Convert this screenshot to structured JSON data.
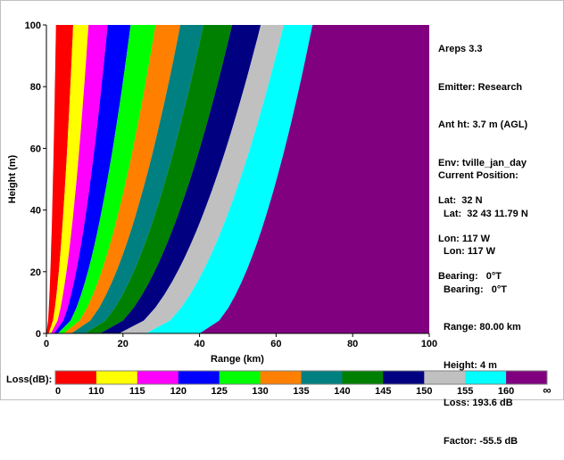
{
  "chart_data": {
    "type": "heatmap",
    "title": "",
    "xlabel": "Range (km)",
    "ylabel": "Height (m)",
    "xlim": [
      0,
      100
    ],
    "ylim": [
      0,
      100
    ],
    "x_ticks": [
      "0",
      "20",
      "40",
      "60",
      "80",
      "100"
    ],
    "y_ticks": [
      "0",
      "20",
      "40",
      "60",
      "80",
      "100"
    ],
    "legend_title": "Loss(dB):",
    "legend_labels": [
      "0",
      "110",
      "115",
      "120",
      "125",
      "130",
      "135",
      "140",
      "145",
      "150",
      "155",
      "160",
      "∞"
    ],
    "legend_colors": [
      "#ff0000",
      "#ffff00",
      "#ff00ff",
      "#0000ff",
      "#00ff00",
      "#ff8000",
      "#008080",
      "#008000",
      "#000080",
      "#c0c0c0",
      "#00ffff",
      "#800080"
    ],
    "band_boundaries_range_km_at_top": [
      2.5,
      7,
      11,
      16,
      22,
      28.5,
      35,
      41,
      48.5,
      56,
      62,
      69.5
    ],
    "band_boundaries_range_km_at_bottom": [
      0,
      0.6,
      1.2,
      2,
      3,
      4.5,
      6.5,
      10,
      14,
      19,
      26,
      40
    ]
  },
  "info": {
    "app": "Areps 3.3",
    "emitter": "Emitter: Research",
    "ant_ht": "Ant ht: 3.7 m (AGL)",
    "env": "Env: tville_jan_day",
    "lat": "Lat:  32 N",
    "lon": "Lon: 117 W",
    "bearing": "Bearing:   0°T"
  },
  "current_position": {
    "heading": "Current Position:",
    "lat": "Lat:  32 43 11.79 N",
    "lon": "Lon: 117 W",
    "bearing": "Bearing:   0°T",
    "range": "Range: 80.00 km",
    "height": "Height: 4 m",
    "loss": "Loss: 193.6 dB",
    "factor": "Factor: -55.5 dB"
  }
}
